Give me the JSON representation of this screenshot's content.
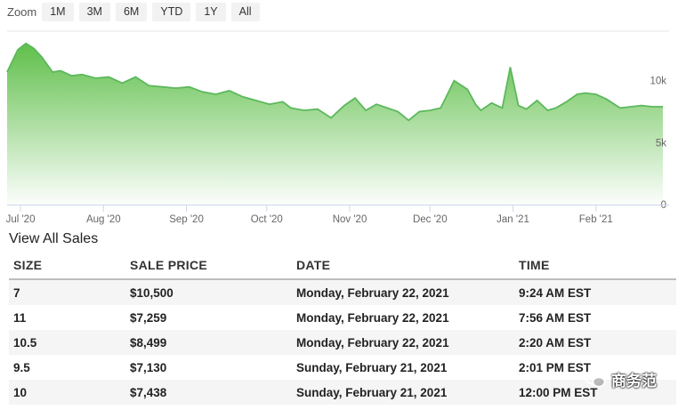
{
  "zoom": {
    "label": "Zoom",
    "buttons": [
      "1M",
      "3M",
      "6M",
      "YTD",
      "1Y",
      "All"
    ]
  },
  "chart_data": {
    "type": "area",
    "y_ticks": [
      "10k",
      "5k",
      "0"
    ],
    "ylim": [
      0,
      14000
    ],
    "x_tick_labels": [
      "Jul '20",
      "Aug '20",
      "Sep '20",
      "Oct '20",
      "Nov '20",
      "Dec '20",
      "Jan '21",
      "Feb '21"
    ],
    "x_tick_dates": [
      "2020-07-01",
      "2020-08-01",
      "2020-09-01",
      "2020-10-01",
      "2020-11-01",
      "2020-12-01",
      "2021-01-01",
      "2021-02-01"
    ],
    "xlim": [
      "2020-06-26",
      "2021-02-27"
    ],
    "grid": false,
    "series": [
      {
        "color": "#5cb85c",
        "x": [
          "2020-06-26",
          "2020-06-30",
          "2020-07-03",
          "2020-07-06",
          "2020-07-09",
          "2020-07-13",
          "2020-07-16",
          "2020-07-20",
          "2020-07-24",
          "2020-07-29",
          "2020-08-03",
          "2020-08-08",
          "2020-08-13",
          "2020-08-18",
          "2020-08-23",
          "2020-08-28",
          "2020-09-02",
          "2020-09-07",
          "2020-09-12",
          "2020-09-17",
          "2020-09-22",
          "2020-09-27",
          "2020-10-02",
          "2020-10-07",
          "2020-10-10",
          "2020-10-15",
          "2020-10-20",
          "2020-10-25",
          "2020-10-30",
          "2020-11-03",
          "2020-11-07",
          "2020-11-11",
          "2020-11-15",
          "2020-11-19",
          "2020-11-23",
          "2020-11-27",
          "2020-12-01",
          "2020-12-05",
          "2020-12-10",
          "2020-12-15",
          "2020-12-18",
          "2020-12-20",
          "2020-12-24",
          "2020-12-28",
          "2020-12-31",
          "2021-01-03",
          "2021-01-06",
          "2021-01-10",
          "2021-01-14",
          "2021-01-17",
          "2021-01-21",
          "2021-01-25",
          "2021-01-28",
          "2021-02-01",
          "2021-02-05",
          "2021-02-10",
          "2021-02-14",
          "2021-02-18",
          "2021-02-22",
          "2021-02-26"
        ],
        "y": [
          10700,
          12500,
          13000,
          12600,
          11900,
          10700,
          10800,
          10400,
          10500,
          10200,
          10300,
          9800,
          10300,
          9600,
          9500,
          9400,
          9500,
          9100,
          8900,
          9200,
          8700,
          8400,
          8100,
          8300,
          7800,
          7600,
          7700,
          7000,
          8000,
          8600,
          7600,
          8100,
          7800,
          7500,
          6800,
          7500,
          7600,
          7800,
          10000,
          9300,
          8100,
          7600,
          8200,
          7800,
          11100,
          8000,
          7700,
          8400,
          7600,
          7800,
          8300,
          8900,
          9000,
          8900,
          8500,
          7800,
          7900,
          8000,
          7900,
          7900
        ]
      }
    ]
  },
  "view_all_label": "View All Sales",
  "table": {
    "headers": [
      "SIZE",
      "SALE PRICE",
      "DATE",
      "TIME"
    ],
    "rows": [
      [
        "7",
        "$10,500",
        "Monday, February 22, 2021",
        "9:24 AM EST"
      ],
      [
        "11",
        "$7,259",
        "Monday, February 22, 2021",
        "7:56 AM EST"
      ],
      [
        "10.5",
        "$8,499",
        "Monday, February 22, 2021",
        "2:20 AM EST"
      ],
      [
        "9.5",
        "$7,130",
        "Sunday, February 21, 2021",
        "2:01 PM EST"
      ],
      [
        "10",
        "$7,438",
        "Sunday, February 21, 2021",
        "12:00 PM EST"
      ]
    ]
  },
  "watermark": {
    "text": "商务范",
    "icon": "wechat-icon"
  }
}
